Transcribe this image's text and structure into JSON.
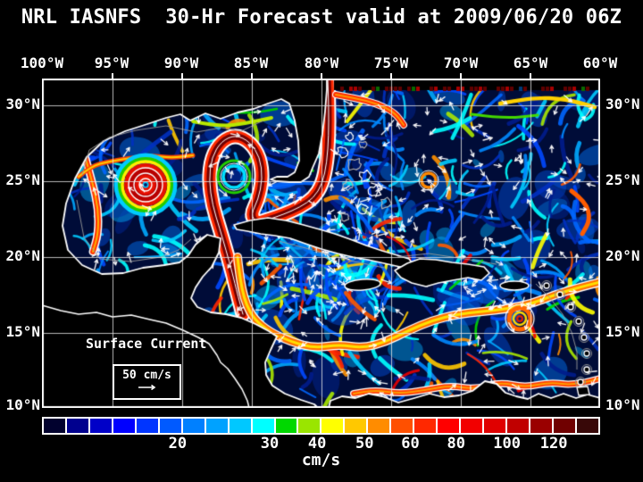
{
  "title": "NRL IASNFS  30-Hr Forecast valid at 2009/06/20 06Z",
  "axes": {
    "lon_labels": [
      "100°W",
      "95°W",
      "90°W",
      "85°W",
      "80°W",
      "75°W",
      "70°W",
      "65°W",
      "60°W"
    ],
    "lat_labels": [
      "30°N",
      "25°N",
      "20°N",
      "15°N",
      "10°N"
    ]
  },
  "legend": {
    "title": "Surface Current",
    "scale_value": "50 cm/s"
  },
  "colorbar": {
    "units": "cm/s",
    "ticks": [
      "20",
      "30",
      "40",
      "50",
      "60",
      "80",
      "100",
      "120"
    ],
    "tick_pos_pct": [
      24.3,
      40.8,
      49.3,
      57.8,
      66.0,
      74.2,
      83.3,
      91.7
    ],
    "segment_colors": [
      "#01012e",
      "#00008e",
      "#0000c8",
      "#0000ff",
      "#0035ff",
      "#005aff",
      "#0080ff",
      "#00a2ff",
      "#00c8ff",
      "#00ffff",
      "#00d800",
      "#9ae500",
      "#ffff00",
      "#ffc800",
      "#ff8c00",
      "#ff5000",
      "#ff2800",
      "#ff0000",
      "#f20000",
      "#e00000",
      "#c00000",
      "#9a0000",
      "#700000",
      "#380808"
    ]
  },
  "map_colors": {
    "ocean": "#000c38",
    "land": "#000000",
    "coastline": "#ffffff",
    "grid": "#e6e6e6",
    "flow_cool": [
      "#001c8c",
      "#0030c0",
      "#0048ff",
      "#0066ff",
      "#0088ff",
      "#00a8ff",
      "#00ccff",
      "#00ffff"
    ],
    "flow_warm": [
      "#00dd00",
      "#a8e800",
      "#ffff00",
      "#ffc800",
      "#ff9000",
      "#ff5a00",
      "#ff2600",
      "#e80000"
    ]
  }
}
